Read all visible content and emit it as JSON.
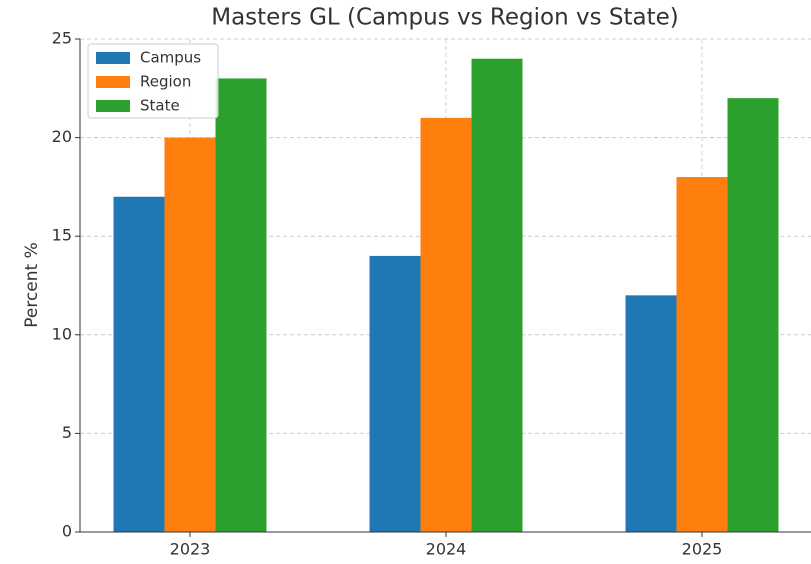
{
  "chart_data": {
    "type": "bar",
    "title": "Masters GL (Campus vs Region vs State)",
    "ylabel": "Percent %",
    "categories": [
      "2023",
      "2024",
      "2025"
    ],
    "series": [
      {
        "name": "Campus",
        "color": "#1f77b4",
        "values": [
          17,
          14,
          12
        ]
      },
      {
        "name": "Region",
        "color": "#ff7f0e",
        "values": [
          20,
          21,
          18
        ]
      },
      {
        "name": "State",
        "color": "#2ca02c",
        "values": [
          23,
          24,
          22
        ]
      }
    ],
    "ylim": [
      0,
      25
    ],
    "yticks": [
      0,
      5,
      10,
      15,
      20,
      25
    ],
    "grid": true,
    "legend": "upper left"
  }
}
